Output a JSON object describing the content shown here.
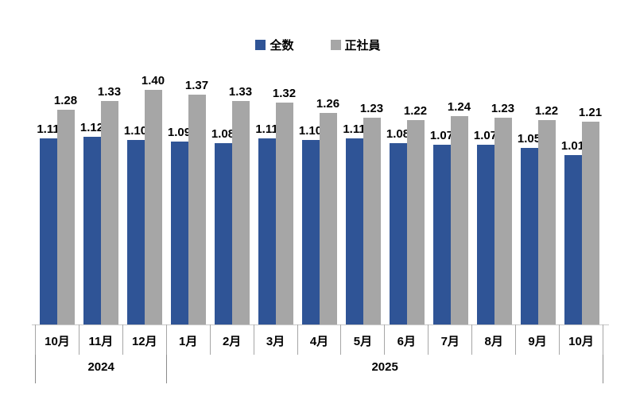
{
  "chart_data": {
    "type": "bar",
    "title": "",
    "xlabel": "",
    "ylabel": "",
    "categories": [
      "10月",
      "11月",
      "12月",
      "1月",
      "2月",
      "3月",
      "4月",
      "5月",
      "6月",
      "7月",
      "8月",
      "9月",
      "10月"
    ],
    "series": [
      {
        "name": "全数",
        "color": "#2F5496",
        "values": [
          1.11,
          1.12,
          1.1,
          1.09,
          1.08,
          1.11,
          1.1,
          1.11,
          1.08,
          1.07,
          1.07,
          1.05,
          1.01
        ]
      },
      {
        "name": "正社員",
        "color": "#A6A6A6",
        "values": [
          1.28,
          1.33,
          1.4,
          1.37,
          1.33,
          1.32,
          1.26,
          1.23,
          1.22,
          1.24,
          1.23,
          1.22,
          1.21
        ]
      }
    ],
    "year_groups": [
      {
        "label": "2024",
        "span": 3
      },
      {
        "label": "2025",
        "span": 10
      }
    ],
    "ylim": [
      0,
      1.5
    ],
    "grid": false,
    "y_axis_visible": false,
    "legend_position": "top-center",
    "value_labels": "outside-end, 2 decimals"
  }
}
